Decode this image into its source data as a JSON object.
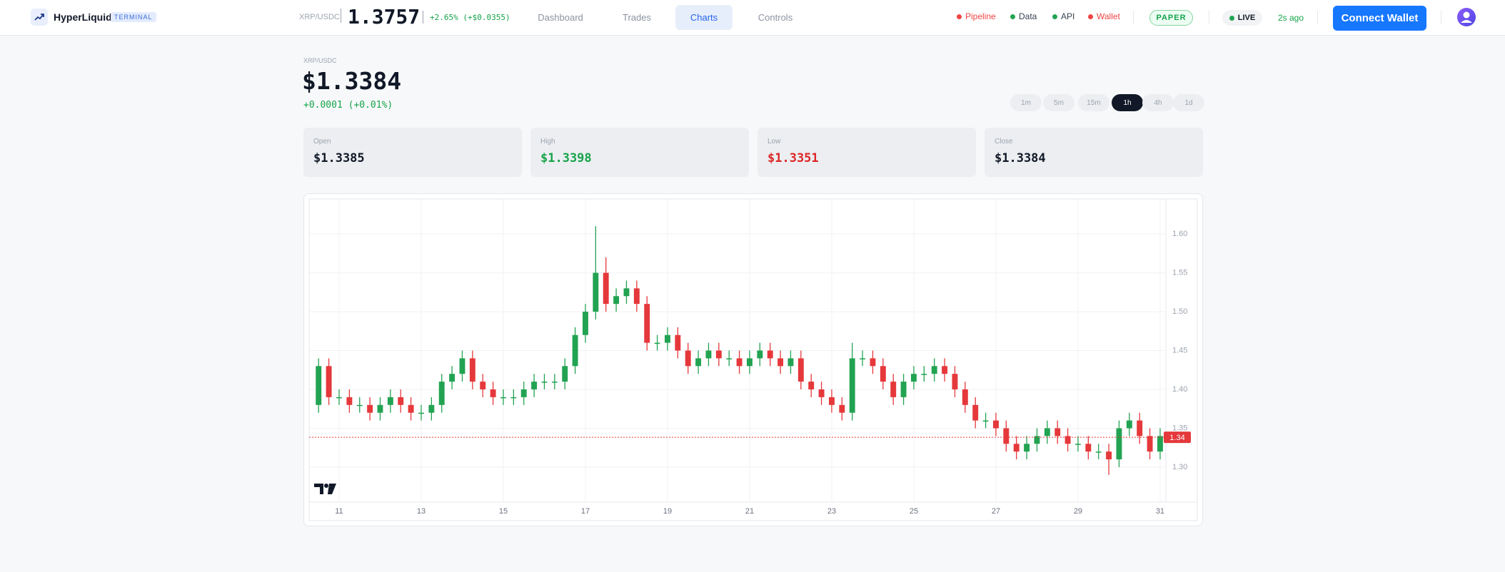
{
  "header": {
    "brand": "HyperLiquid",
    "badge": "TERMINAL",
    "ticker": "XRP/USDC",
    "price": "1.3757",
    "change": "+2.65% (+$0.0355)",
    "nav": [
      "Dashboard",
      "Trades",
      "Charts",
      "Controls"
    ],
    "active_nav": "Charts",
    "status": [
      {
        "label": "Pipeline",
        "color": "#ef4444",
        "text_color": "#ef4444"
      },
      {
        "label": "Data",
        "color": "#22a352",
        "text_color": "#374151"
      },
      {
        "label": "API",
        "color": "#22a352",
        "text_color": "#374151"
      },
      {
        "label": "Wallet",
        "color": "#ef4444",
        "text_color": "#ef4444"
      }
    ],
    "mode": "PAPER",
    "live": "LIVE",
    "updated": "2s ago",
    "connect": "Connect Wallet"
  },
  "summary": {
    "symbol": "XRP/USDC",
    "price": "$1.3384",
    "change": "+0.0001 (+0.01%)",
    "timeframes": [
      "1m",
      "5m",
      "15m",
      "1h",
      "4h",
      "1d"
    ],
    "active_timeframe": "1h"
  },
  "stats": [
    {
      "label": "Open",
      "value": "$1.3385",
      "color": "#111827"
    },
    {
      "label": "High",
      "value": "$1.3398",
      "color": "#16a34a"
    },
    {
      "label": "Low",
      "value": "$1.3351",
      "color": "#dc2626"
    },
    {
      "label": "Close",
      "value": "$1.3384",
      "color": "#111827"
    }
  ],
  "chart_data": {
    "type": "candlestick",
    "up_color": "#22a352",
    "down_color": "#e5383b",
    "grid": true,
    "x": [
      10.5,
      10.75,
      11,
      11.25,
      11.5,
      11.75,
      12,
      12.25,
      12.5,
      12.75,
      13,
      13.25,
      13.5,
      13.75,
      14,
      14.25,
      14.5,
      14.75,
      15,
      15.25,
      15.5,
      15.75,
      16,
      16.25,
      16.5,
      16.75,
      17,
      17.25,
      17.5,
      17.75,
      18,
      18.25,
      18.5,
      18.75,
      19,
      19.25,
      19.5,
      19.75,
      20,
      20.25,
      20.5,
      20.75,
      21,
      21.25,
      21.5,
      21.75,
      22,
      22.25,
      22.5,
      22.75,
      23,
      23.25,
      23.5,
      23.75,
      24,
      24.25,
      24.5,
      24.75,
      25,
      25.25,
      25.5,
      25.75,
      26,
      26.25,
      26.5,
      26.75,
      27,
      27.25,
      27.5,
      27.75,
      28,
      28.25,
      28.5,
      28.75,
      29,
      29.25,
      29.5,
      29.75,
      30,
      30.25,
      30.5,
      30.75,
      31
    ],
    "open": [
      1.38,
      1.43,
      1.39,
      1.39,
      1.38,
      1.38,
      1.37,
      1.38,
      1.39,
      1.38,
      1.37,
      1.37,
      1.38,
      1.41,
      1.42,
      1.44,
      1.41,
      1.4,
      1.39,
      1.39,
      1.39,
      1.4,
      1.41,
      1.41,
      1.41,
      1.43,
      1.47,
      1.5,
      1.55,
      1.51,
      1.52,
      1.53,
      1.51,
      1.46,
      1.46,
      1.47,
      1.45,
      1.43,
      1.44,
      1.45,
      1.44,
      1.44,
      1.43,
      1.44,
      1.45,
      1.44,
      1.43,
      1.44,
      1.41,
      1.4,
      1.39,
      1.38,
      1.37,
      1.44,
      1.44,
      1.43,
      1.41,
      1.39,
      1.41,
      1.42,
      1.42,
      1.43,
      1.42,
      1.4,
      1.38,
      1.36,
      1.36,
      1.35,
      1.33,
      1.32,
      1.33,
      1.34,
      1.35,
      1.34,
      1.33,
      1.33,
      1.32,
      1.32,
      1.31,
      1.35,
      1.36,
      1.34,
      1.32
    ],
    "high": [
      1.44,
      1.44,
      1.4,
      1.4,
      1.39,
      1.39,
      1.39,
      1.4,
      1.4,
      1.39,
      1.38,
      1.39,
      1.42,
      1.43,
      1.45,
      1.45,
      1.42,
      1.41,
      1.4,
      1.4,
      1.41,
      1.42,
      1.42,
      1.42,
      1.44,
      1.48,
      1.51,
      1.61,
      1.57,
      1.53,
      1.54,
      1.54,
      1.52,
      1.47,
      1.48,
      1.48,
      1.46,
      1.45,
      1.46,
      1.46,
      1.45,
      1.45,
      1.45,
      1.46,
      1.46,
      1.45,
      1.45,
      1.45,
      1.42,
      1.41,
      1.4,
      1.39,
      1.46,
      1.45,
      1.45,
      1.44,
      1.42,
      1.42,
      1.43,
      1.43,
      1.44,
      1.44,
      1.43,
      1.41,
      1.39,
      1.37,
      1.37,
      1.36,
      1.34,
      1.34,
      1.35,
      1.36,
      1.36,
      1.35,
      1.34,
      1.34,
      1.33,
      1.33,
      1.36,
      1.37,
      1.37,
      1.35,
      1.35
    ],
    "low": [
      1.37,
      1.38,
      1.38,
      1.37,
      1.37,
      1.36,
      1.36,
      1.37,
      1.37,
      1.36,
      1.36,
      1.36,
      1.37,
      1.4,
      1.41,
      1.4,
      1.39,
      1.38,
      1.38,
      1.38,
      1.38,
      1.39,
      1.4,
      1.4,
      1.4,
      1.42,
      1.46,
      1.49,
      1.5,
      1.5,
      1.51,
      1.5,
      1.45,
      1.45,
      1.45,
      1.44,
      1.42,
      1.42,
      1.43,
      1.43,
      1.43,
      1.42,
      1.42,
      1.43,
      1.43,
      1.42,
      1.42,
      1.4,
      1.39,
      1.38,
      1.37,
      1.36,
      1.36,
      1.43,
      1.42,
      1.4,
      1.38,
      1.38,
      1.4,
      1.41,
      1.41,
      1.41,
      1.39,
      1.37,
      1.35,
      1.35,
      1.34,
      1.32,
      1.31,
      1.31,
      1.32,
      1.33,
      1.33,
      1.32,
      1.32,
      1.31,
      1.31,
      1.29,
      1.3,
      1.34,
      1.33,
      1.31,
      1.31
    ],
    "close": [
      1.43,
      1.39,
      1.39,
      1.38,
      1.38,
      1.37,
      1.38,
      1.39,
      1.38,
      1.37,
      1.37,
      1.38,
      1.41,
      1.42,
      1.44,
      1.41,
      1.4,
      1.39,
      1.39,
      1.39,
      1.4,
      1.41,
      1.41,
      1.41,
      1.43,
      1.47,
      1.5,
      1.55,
      1.51,
      1.52,
      1.53,
      1.51,
      1.46,
      1.46,
      1.47,
      1.45,
      1.43,
      1.44,
      1.45,
      1.44,
      1.44,
      1.43,
      1.44,
      1.45,
      1.44,
      1.43,
      1.44,
      1.41,
      1.4,
      1.39,
      1.38,
      1.37,
      1.44,
      1.44,
      1.43,
      1.41,
      1.39,
      1.41,
      1.42,
      1.42,
      1.43,
      1.42,
      1.4,
      1.38,
      1.36,
      1.36,
      1.35,
      1.33,
      1.32,
      1.33,
      1.34,
      1.35,
      1.34,
      1.33,
      1.33,
      1.32,
      1.32,
      1.31,
      1.35,
      1.36,
      1.34,
      1.32,
      1.34
    ],
    "last_price": {
      "value": 1.3384,
      "label": "1.34"
    },
    "last_price_color": "#e5383b",
    "xlim": [
      10.27,
      31.14
    ],
    "xticks": [
      11,
      13,
      15,
      17,
      19,
      21,
      23,
      25,
      27,
      29,
      31
    ],
    "ylim": [
      1.255,
      1.645
    ],
    "yticks": [
      {
        "value": 1.3,
        "label": "1.30"
      },
      1.35,
      {
        "value": 1.4,
        "label": "1.40"
      },
      1.45,
      {
        "value": 1.5,
        "label": "1.50"
      },
      1.55,
      {
        "value": 1.6,
        "label": "1.60"
      }
    ]
  }
}
